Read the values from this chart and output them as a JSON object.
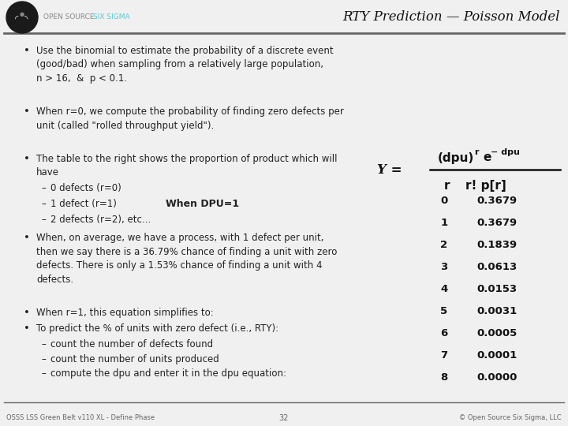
{
  "title": "RTY Prediction — Poisson Model",
  "header_color": "#5bc8d2",
  "bg_color": "#f0f0f0",
  "separator_color": "#555555",
  "bullet_color": "#222222",
  "bullets": [
    "Use the binomial to estimate the probability of a discrete event\n(good/bad) when sampling from a relatively large population,\nn > 16,  &  p < 0.1.",
    "When r=0, we compute the probability of finding zero defects per\nunit (called \"rolled throughput yield\").",
    "The table to the right shows the proportion of product which will\nhave"
  ],
  "sub_bullets": [
    "0 defects (r=0)",
    "1 defect (r=1)",
    "2 defects (r=2), etc..."
  ],
  "when_dpu": "When DPU=1",
  "bullet4": "When, on average, we have a process, with 1 defect per unit,\nthen we say there is a 36.79% chance of finding a unit with zero\ndefects. There is only a 1.53% chance of finding a unit with 4\ndefects.",
  "bullet5": "When r=1, this equation simplifies to:",
  "bullet6": "To predict the % of units with zero defect (i.e., RTY):",
  "sub_bullets2": [
    "count the number of defects found",
    "count the number of units produced",
    "compute the dpu and enter it in the dpu equation:"
  ],
  "table_r": [
    0,
    1,
    2,
    3,
    4,
    5,
    6,
    7,
    8
  ],
  "table_pr": [
    "0.3679",
    "0.3679",
    "0.1839",
    "0.0613",
    "0.0153",
    "0.0031",
    "0.0005",
    "0.0001",
    "0.0000"
  ],
  "footer_left": "OSSS LSS Green Belt v110 XL - Define Phase",
  "footer_center": "32",
  "footer_right": "© Open Source Six Sigma, LLC",
  "font_size_body": 8.5,
  "font_size_title": 12,
  "font_size_table": 9.5,
  "font_size_formula": 10,
  "font_size_footer": 6
}
